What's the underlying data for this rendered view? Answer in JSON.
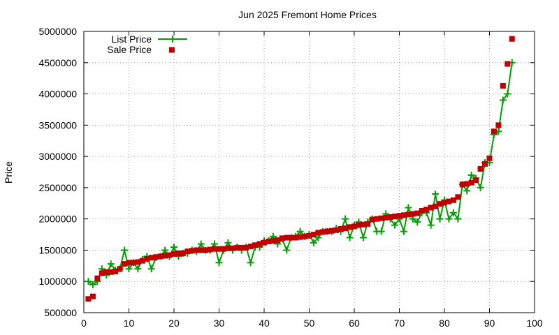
{
  "chart_data": {
    "type": "line",
    "title": "Jun 2025 Fremont Home Prices",
    "xlabel": "",
    "ylabel": "Price",
    "xlim": [
      0,
      100
    ],
    "ylim": [
      500000,
      5000000
    ],
    "x_ticks": [
      "0",
      "10",
      "20",
      "30",
      "40",
      "50",
      "60",
      "70",
      "80",
      "90",
      "100"
    ],
    "y_ticks": [
      "500000",
      "1000000",
      "1500000",
      "2000000",
      "2500000",
      "3000000",
      "3500000",
      "4000000",
      "4500000",
      "5000000"
    ],
    "grid": true,
    "legend_position": "top-left",
    "series": [
      {
        "name": "List Price",
        "style": "line+plus",
        "color": "#00a000",
        "x": [
          1,
          2,
          3,
          4,
          5,
          6,
          7,
          8,
          9,
          10,
          11,
          12,
          13,
          14,
          15,
          16,
          17,
          18,
          19,
          20,
          21,
          22,
          23,
          24,
          25,
          26,
          27,
          28,
          29,
          30,
          31,
          32,
          33,
          34,
          35,
          36,
          37,
          38,
          39,
          40,
          41,
          42,
          43,
          44,
          45,
          46,
          47,
          48,
          49,
          50,
          51,
          52,
          53,
          54,
          55,
          56,
          57,
          58,
          59,
          60,
          61,
          62,
          63,
          64,
          65,
          66,
          67,
          68,
          69,
          70,
          71,
          72,
          73,
          74,
          75,
          76,
          77,
          78,
          79,
          80,
          81,
          82,
          83,
          84,
          85,
          86,
          87,
          88,
          89,
          90,
          91,
          92,
          93,
          94,
          95
        ],
        "values": [
          1000000,
          950000,
          1000000,
          1200000,
          1100000,
          1280000,
          1180000,
          1200000,
          1500000,
          1200000,
          1300000,
          1200000,
          1350000,
          1400000,
          1200000,
          1380000,
          1400000,
          1500000,
          1400000,
          1550000,
          1400000,
          1450000,
          1450000,
          1500000,
          1480000,
          1600000,
          1500000,
          1500000,
          1600000,
          1300000,
          1500000,
          1620000,
          1500000,
          1550000,
          1500000,
          1550000,
          1300000,
          1550000,
          1550000,
          1650000,
          1650000,
          1720000,
          1600000,
          1680000,
          1500000,
          1700000,
          1720000,
          1800000,
          1720000,
          1750000,
          1620000,
          1700000,
          1800000,
          1800000,
          1800000,
          1850000,
          1800000,
          2000000,
          1700000,
          1900000,
          1950000,
          1700000,
          1950000,
          2000000,
          1800000,
          1800000,
          2080000,
          2000000,
          1900000,
          2000000,
          1800000,
          2180000,
          2000000,
          1950000,
          2100000,
          2100000,
          1900000,
          2400000,
          2000000,
          2300000,
          2000000,
          2100000,
          2000000,
          2550000,
          2450000,
          2700000,
          2650000,
          2500000,
          2900000,
          2900000,
          3350000,
          3400000,
          3900000,
          4000000,
          4500000
        ]
      },
      {
        "name": "Sale Price",
        "style": "points-square",
        "color": "#c00000",
        "x": [
          1,
          2,
          3,
          4,
          5,
          6,
          7,
          8,
          9,
          10,
          11,
          12,
          13,
          14,
          15,
          16,
          17,
          18,
          19,
          20,
          21,
          22,
          23,
          24,
          25,
          26,
          27,
          28,
          29,
          30,
          31,
          32,
          33,
          34,
          35,
          36,
          37,
          38,
          39,
          40,
          41,
          42,
          43,
          44,
          45,
          46,
          47,
          48,
          49,
          50,
          51,
          52,
          53,
          54,
          55,
          56,
          57,
          58,
          59,
          60,
          61,
          62,
          63,
          64,
          65,
          66,
          67,
          68,
          69,
          70,
          71,
          72,
          73,
          74,
          75,
          76,
          77,
          78,
          79,
          80,
          81,
          82,
          83,
          84,
          85,
          86,
          87,
          88,
          89,
          90,
          91,
          92,
          93,
          94,
          95
        ],
        "values": [
          720000,
          760000,
          1050000,
          1130000,
          1150000,
          1150000,
          1160000,
          1200000,
          1280000,
          1300000,
          1300000,
          1310000,
          1330000,
          1360000,
          1380000,
          1390000,
          1400000,
          1410000,
          1420000,
          1440000,
          1450000,
          1450000,
          1480000,
          1490000,
          1500000,
          1500000,
          1500000,
          1510000,
          1520000,
          1520000,
          1520000,
          1530000,
          1530000,
          1540000,
          1540000,
          1540000,
          1560000,
          1580000,
          1600000,
          1620000,
          1640000,
          1650000,
          1660000,
          1690000,
          1700000,
          1700000,
          1700000,
          1710000,
          1720000,
          1730000,
          1750000,
          1780000,
          1790000,
          1800000,
          1810000,
          1820000,
          1840000,
          1850000,
          1870000,
          1880000,
          1900000,
          1910000,
          1920000,
          1990000,
          2000000,
          2010000,
          2020000,
          2030000,
          2040000,
          2050000,
          2060000,
          2070000,
          2080000,
          2090000,
          2130000,
          2150000,
          2180000,
          2200000,
          2240000,
          2260000,
          2280000,
          2300000,
          2350000,
          2550000,
          2560000,
          2580000,
          2620000,
          2800000,
          2880000,
          2970000,
          3400000,
          3500000,
          4130000,
          4480000,
          4880000
        ]
      }
    ]
  }
}
